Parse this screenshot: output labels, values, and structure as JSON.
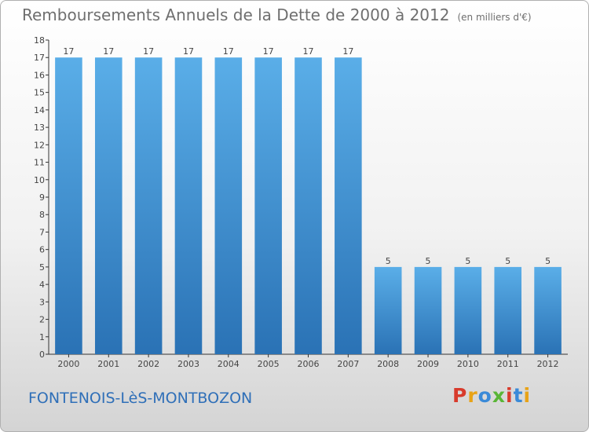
{
  "header": {
    "title": "Remboursements Annuels de la Dette de 2000 à 2012",
    "unit": "(en milliers d'€)"
  },
  "footer": {
    "commune": "FONTENOIS-LèS-MONTBOZON",
    "logo": [
      "P",
      "r",
      "o",
      "x",
      "i",
      "t",
      "i"
    ]
  },
  "colors": {
    "bar_top": "#5aaee8",
    "bar_bottom": "#2a72b5",
    "title": "#6f6f6f",
    "commune": "#2f6fb8"
  },
  "chart_data": {
    "type": "bar",
    "title": "Remboursements Annuels de la Dette de 2000 à 2012",
    "subtitle": "(en milliers d'€)",
    "categories": [
      "2000",
      "2001",
      "2002",
      "2003",
      "2004",
      "2005",
      "2006",
      "2007",
      "2008",
      "2009",
      "2010",
      "2011",
      "2012"
    ],
    "values": [
      17,
      17,
      17,
      17,
      17,
      17,
      17,
      17,
      5,
      5,
      5,
      5,
      5
    ],
    "data_labels": [
      "17",
      "17",
      "17",
      "17",
      "17",
      "17",
      "17",
      "17",
      "5",
      "5",
      "5",
      "5",
      "5"
    ],
    "yticks": [
      0,
      1,
      2,
      3,
      4,
      5,
      6,
      7,
      8,
      9,
      10,
      11,
      12,
      13,
      14,
      15,
      16,
      17,
      18
    ],
    "ylim": [
      0,
      18
    ],
    "xlabel": "",
    "ylabel": "",
    "grid": false,
    "legend": "none"
  }
}
